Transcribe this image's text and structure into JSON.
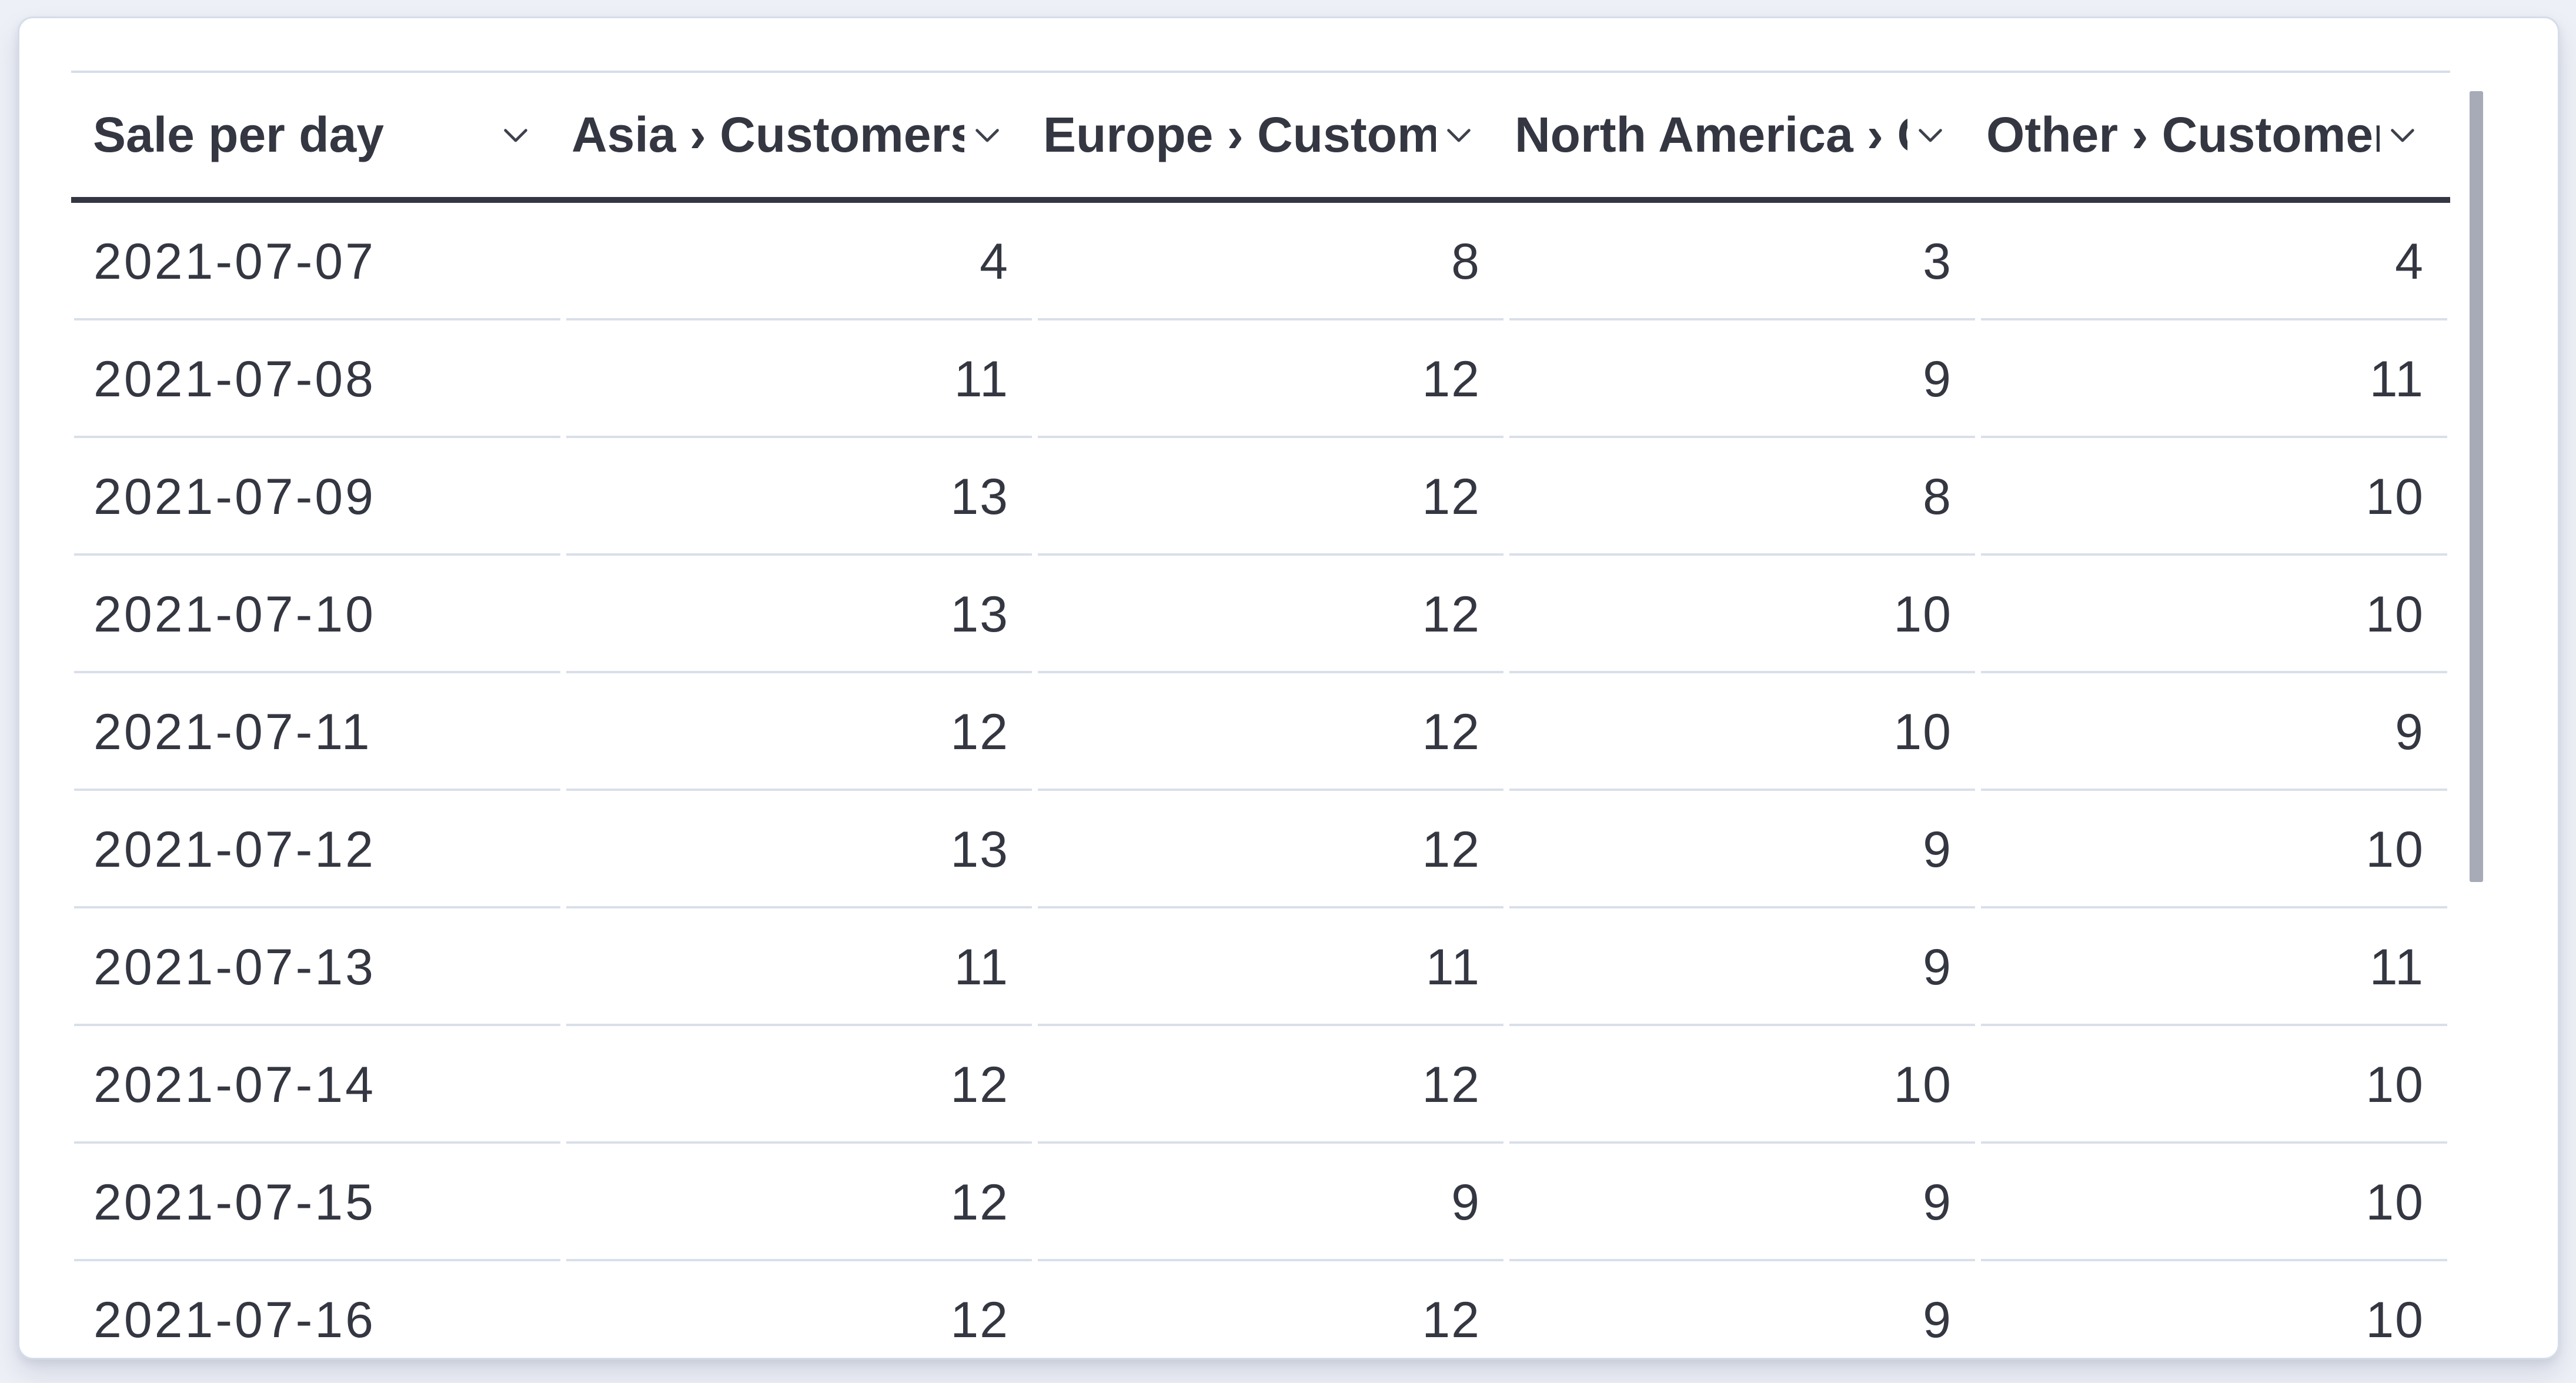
{
  "panel": {
    "kind": "datatable-visualization",
    "scrollbar": {
      "orientation": "vertical",
      "icon": "scrollbar-thumb"
    }
  },
  "table": {
    "columns": [
      {
        "id": "date",
        "label": "Sale per day",
        "align": "left",
        "icon": "chevron-down-icon"
      },
      {
        "id": "asia",
        "label": "Asia › Customers",
        "align": "right",
        "icon": "chevron-down-icon"
      },
      {
        "id": "europe",
        "label": "Europe › Customers",
        "align": "right",
        "icon": "chevron-down-icon"
      },
      {
        "id": "north-america",
        "label": "North America › Customers",
        "align": "right",
        "icon": "chevron-down-icon"
      },
      {
        "id": "other",
        "label": "Other › Customers",
        "align": "right",
        "icon": "chevron-down-icon"
      }
    ],
    "rows": [
      {
        "date": "2021-07-07",
        "values": [
          "4",
          "8",
          "3",
          "4"
        ]
      },
      {
        "date": "2021-07-08",
        "values": [
          "11",
          "12",
          "9",
          "11"
        ]
      },
      {
        "date": "2021-07-09",
        "values": [
          "13",
          "12",
          "8",
          "10"
        ]
      },
      {
        "date": "2021-07-10",
        "values": [
          "13",
          "12",
          "10",
          "10"
        ]
      },
      {
        "date": "2021-07-11",
        "values": [
          "12",
          "12",
          "10",
          "9"
        ]
      },
      {
        "date": "2021-07-12",
        "values": [
          "13",
          "12",
          "9",
          "10"
        ]
      },
      {
        "date": "2021-07-13",
        "values": [
          "11",
          "11",
          "9",
          "11"
        ]
      },
      {
        "date": "2021-07-14",
        "values": [
          "12",
          "12",
          "10",
          "10"
        ]
      },
      {
        "date": "2021-07-15",
        "values": [
          "12",
          "9",
          "9",
          "10"
        ]
      },
      {
        "date": "2021-07-16",
        "values": [
          "12",
          "12",
          "9",
          "10"
        ]
      }
    ]
  },
  "colors": {
    "text": "#343741",
    "header_underline": "#343741",
    "row_divider": "#d9dfea",
    "panel_border": "#d6dde9",
    "page_background": "#eef0f7",
    "scrollbar_thumb": "#a6abb7"
  }
}
